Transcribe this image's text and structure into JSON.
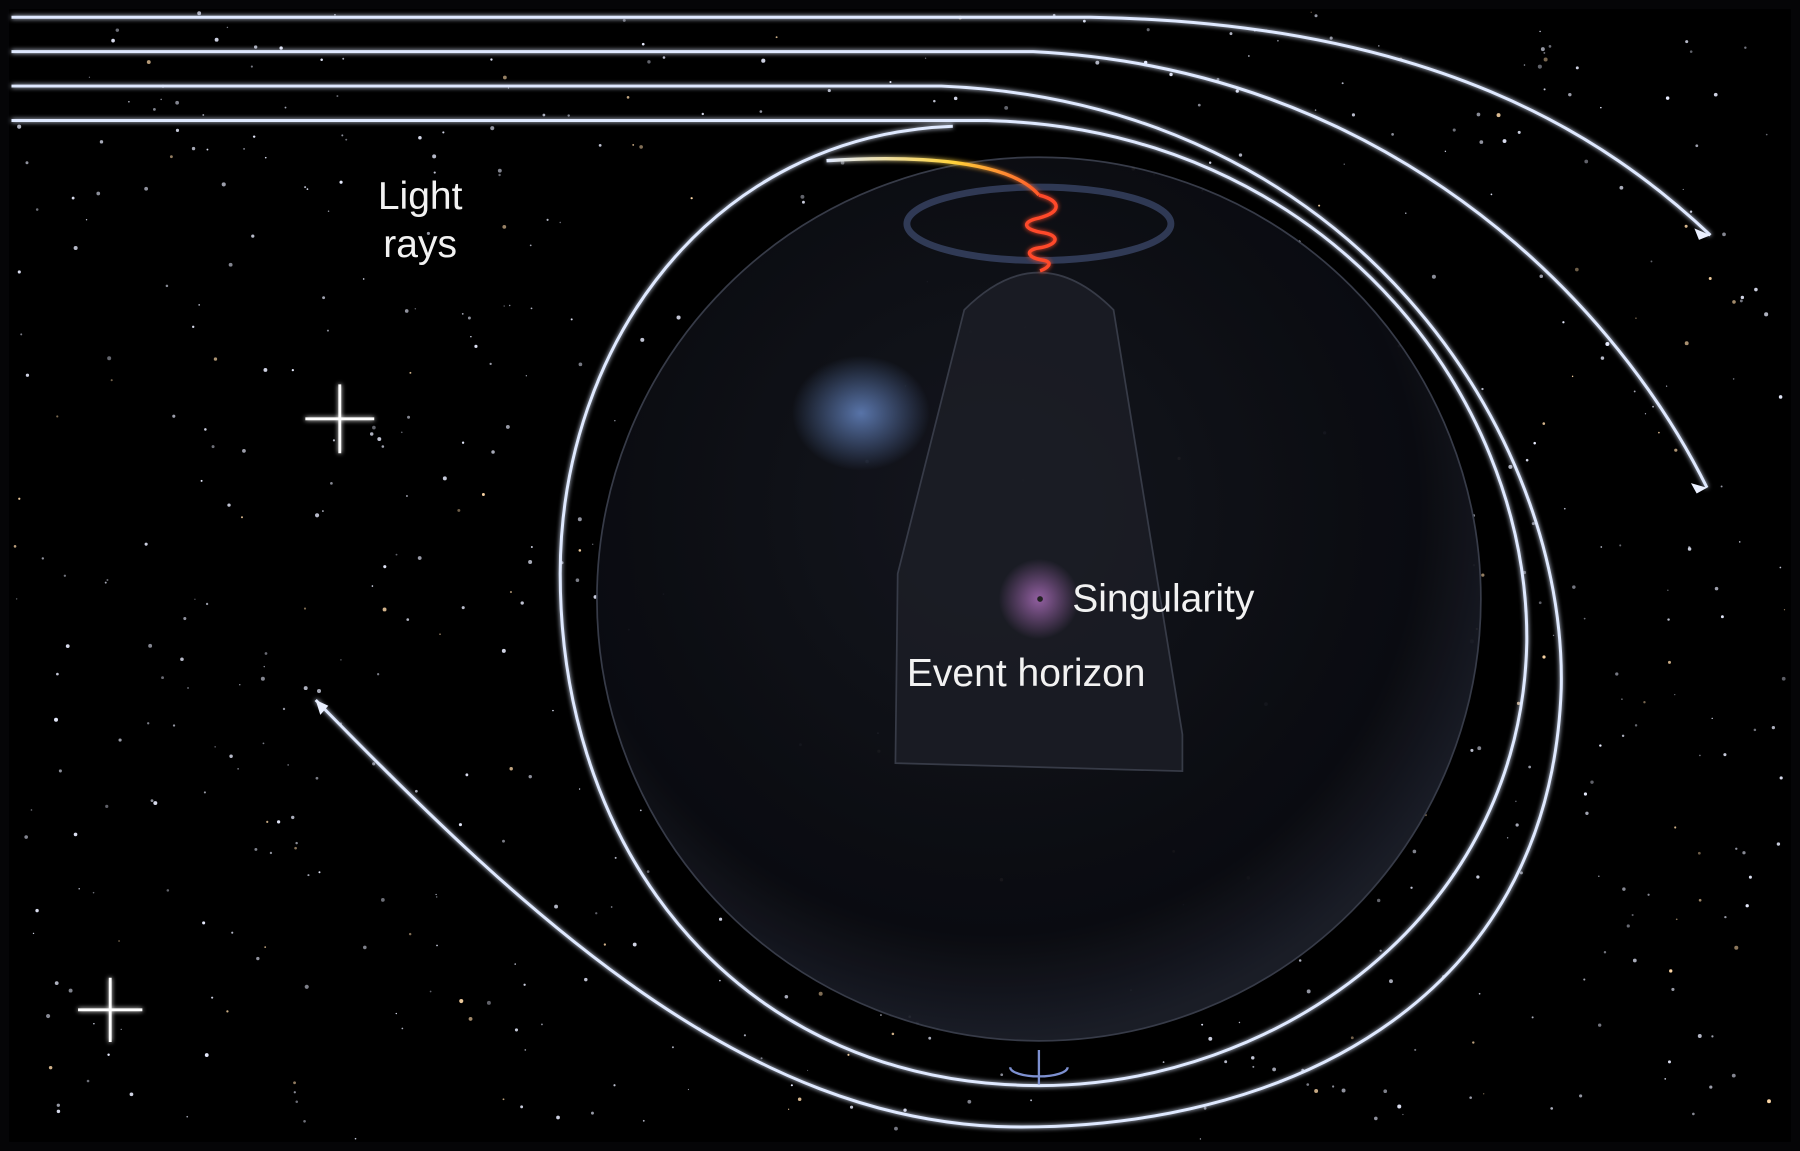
{
  "labels": {
    "light_rays": [
      "Light",
      "rays"
    ],
    "singularity": "Singularity",
    "event_horizon": "Event horizon"
  }
}
